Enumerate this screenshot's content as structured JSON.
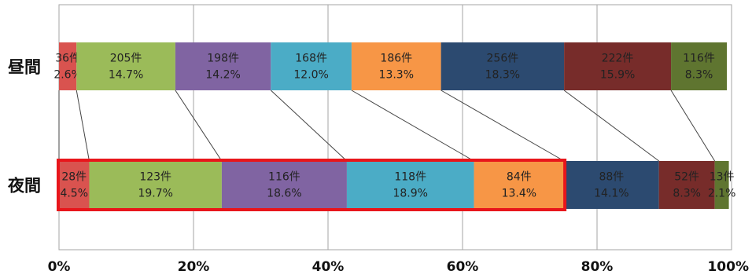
{
  "chart_data": {
    "type": "bar",
    "orientation": "horizontal",
    "stacked": "100%",
    "categories": [
      "昼間",
      "夜間"
    ],
    "series": [
      {
        "color": "#d9534f",
        "values": [
          2.6,
          4.5
        ],
        "labels": [
          [
            "36件",
            "2.6%"
          ],
          [
            "28件",
            "4.5%"
          ]
        ]
      },
      {
        "color": "#9bbb59",
        "values": [
          14.7,
          19.7
        ],
        "labels": [
          [
            "205件",
            "14.7%"
          ],
          [
            "123件",
            "19.7%"
          ]
        ]
      },
      {
        "color": "#8064a2",
        "values": [
          14.2,
          18.6
        ],
        "labels": [
          [
            "198件",
            "14.2%"
          ],
          [
            "116件",
            "18.6%"
          ]
        ]
      },
      {
        "color": "#4bacc6",
        "values": [
          12.0,
          18.9
        ],
        "labels": [
          [
            "168件",
            "12.0%"
          ],
          [
            "118件",
            "18.9%"
          ]
        ]
      },
      {
        "color": "#f79646",
        "values": [
          13.3,
          13.4
        ],
        "labels": [
          [
            "186件",
            "13.3%"
          ],
          [
            "84件",
            "13.4%"
          ]
        ]
      },
      {
        "color": "#2c4a70",
        "values": [
          18.3,
          14.1
        ],
        "labels": [
          [
            "256件",
            "18.3%"
          ],
          [
            "88件",
            "14.1%"
          ]
        ]
      },
      {
        "color": "#772c2a",
        "values": [
          15.9,
          8.3
        ],
        "labels": [
          [
            "222件",
            "15.9%"
          ],
          [
            "52件",
            "8.3%"
          ]
        ]
      },
      {
        "color": "#5f7530",
        "values": [
          8.3,
          2.1
        ],
        "labels": [
          [
            "116件",
            "8.3%"
          ],
          [
            "13件",
            "2.1%"
          ]
        ]
      }
    ],
    "x_ticks": [
      "0%",
      "20%",
      "40%",
      "60%",
      "80%",
      "100%"
    ],
    "xlim": [
      0,
      100
    ],
    "grid": true,
    "legend": "none",
    "highlight": {
      "category": "夜間",
      "series_from": 0,
      "series_to": 4,
      "color": "#e8161b"
    }
  }
}
